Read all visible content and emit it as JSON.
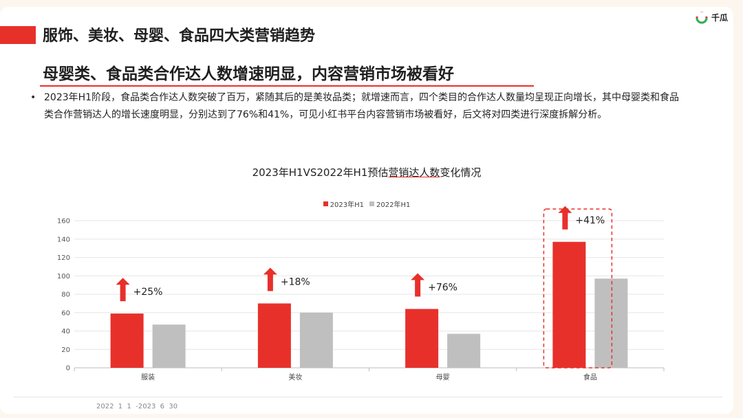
{
  "header": {
    "title": "服饰、美妆、母婴、食品四大类营销趋势",
    "logo_text": "千瓜",
    "accent": "#e8302b"
  },
  "subtitle": "母婴类、食品类合作达人数增速明显，内容营销市场被看好",
  "bullet": "2023年H1阶段，食品类合作达人数突破了百万，紧随其后的是美妆品类；就增速而言，四个类目的合作达人数量均呈现正向增长，其中母婴类和食品类合作营销达人的增长速度明显，分别达到了76%和41%，可见小红书平台内容营销市场被看好，后文将对四类进行深度拆解分析。",
  "chart_data": {
    "type": "bar",
    "title_pre": "2023年H1VS2022年H1预估",
    "title_u": "营销达人数",
    "title_post": "变化情况",
    "categories": [
      "服装",
      "美妆",
      "母婴",
      "食品"
    ],
    "series": [
      {
        "name": "2023年H1",
        "color": "#e8302b",
        "values": [
          59,
          70,
          64,
          137
        ]
      },
      {
        "name": "2022年H1",
        "color": "#bfbfbf",
        "values": [
          47,
          60,
          37,
          97
        ]
      }
    ],
    "ylim": [
      0,
      160
    ],
    "yticks": [
      "0",
      "20",
      "40",
      "60",
      "80",
      "100",
      "120",
      "140",
      "160"
    ],
    "growth_labels": [
      "+25%",
      "+18%",
      "+76%",
      "+41%"
    ],
    "highlight_category": "食品",
    "legend_position": "top-center",
    "grid": true
  },
  "footer": "2022  1  1  -2023  6  30"
}
